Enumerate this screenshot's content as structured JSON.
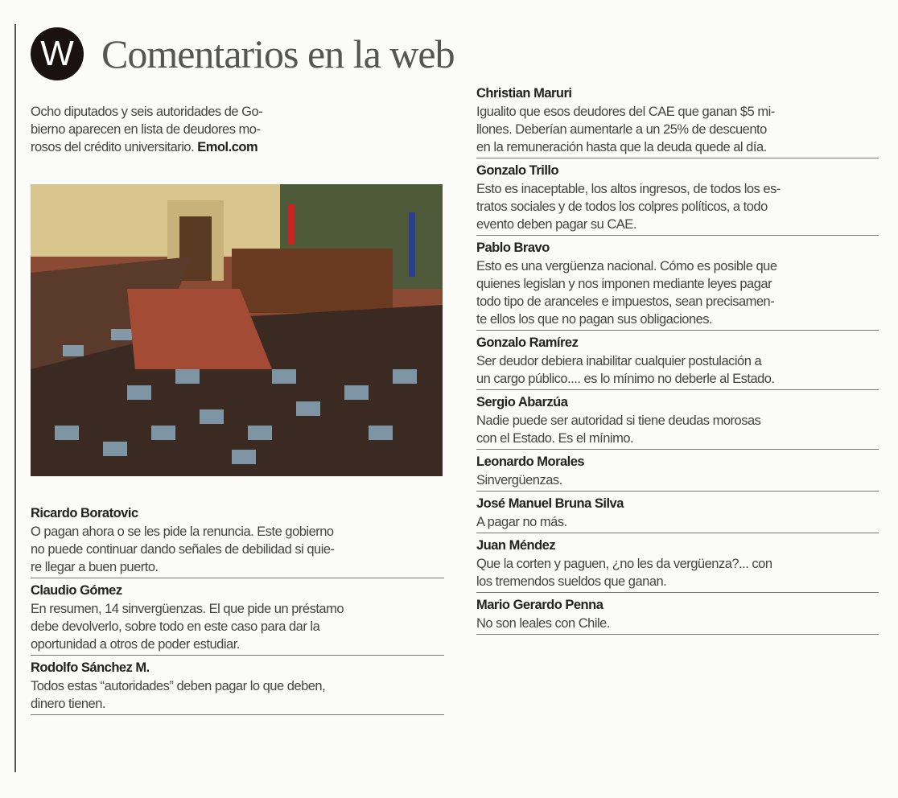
{
  "header": {
    "badge": "W",
    "title": "Comentarios en la web"
  },
  "intro": {
    "lines": [
      "Ocho diputados y seis autoridades de Go-",
      "bierno aparecen en lista de deudores mo-",
      "rosos del crédito universitario. "
    ],
    "source": "Emol.com"
  },
  "photo": {
    "description_icon": "parliament-chamber-photo"
  },
  "left_comments": [
    {
      "name": "Ricardo Boratovic",
      "lines": [
        "O pagan ahora o se les pide la renuncia. Este gobierno",
        "no puede continuar dando señales de debilidad si quie-",
        "re llegar a buen puerto."
      ]
    },
    {
      "name": "Claudio Gómez",
      "lines": [
        "En resumen, 14 sinvergüenzas. El que pide un préstamo",
        "debe devolverlo, sobre todo en este caso para dar la",
        "oportunidad a otros de poder estudiar."
      ]
    },
    {
      "name": "Rodolfo Sánchez M.",
      "lines": [
        "Todos estas “autoridades” deben pagar lo que deben,",
        "dinero tienen."
      ]
    }
  ],
  "right_comments": [
    {
      "name": "Christian Maruri",
      "lines": [
        "Igualito que esos deudores del CAE que ganan $5 mi-",
        "llones. Deberían aumentarle a un 25% de descuento",
        "en la remuneración hasta que la deuda quede al día."
      ]
    },
    {
      "name": "Gonzalo Trillo",
      "lines": [
        "Esto es inaceptable, los altos ingresos, de todos los es-",
        "tratos sociales y de todos los colpres políticos, a todo",
        "evento deben pagar su CAE."
      ]
    },
    {
      "name": "Pablo Bravo",
      "lines": [
        "Esto es una vergüenza nacional. Cómo es posible que",
        "quienes legislan y nos imponen mediante leyes pagar",
        "todo tipo de aranceles e impuestos, sean precisamen-",
        "te ellos los que no pagan sus obligaciones."
      ]
    },
    {
      "name": "Gonzalo Ramírez",
      "lines": [
        "Ser deudor debiera inabilitar cualquier postulación a",
        "un cargo público.... es lo mínimo no deberle al Estado."
      ]
    },
    {
      "name": "Sergio Abarzúa",
      "lines": [
        "Nadie puede ser autoridad si tiene deudas morosas",
        "con el Estado. Es el mínimo."
      ]
    },
    {
      "name": "Leonardo Morales",
      "lines": [
        "Sinvergüenzas."
      ]
    },
    {
      "name": "José Manuel Bruna Silva",
      "lines": [
        "A pagar no más."
      ]
    },
    {
      "name": "Juan Méndez",
      "lines": [
        "Que la corten y paguen, ¿no les da vergüenza?... con",
        "los tremendos sueldos que ganan."
      ]
    },
    {
      "name": "Mario Gerardo Penna",
      "lines": [
        "No son leales con Chile."
      ]
    }
  ]
}
